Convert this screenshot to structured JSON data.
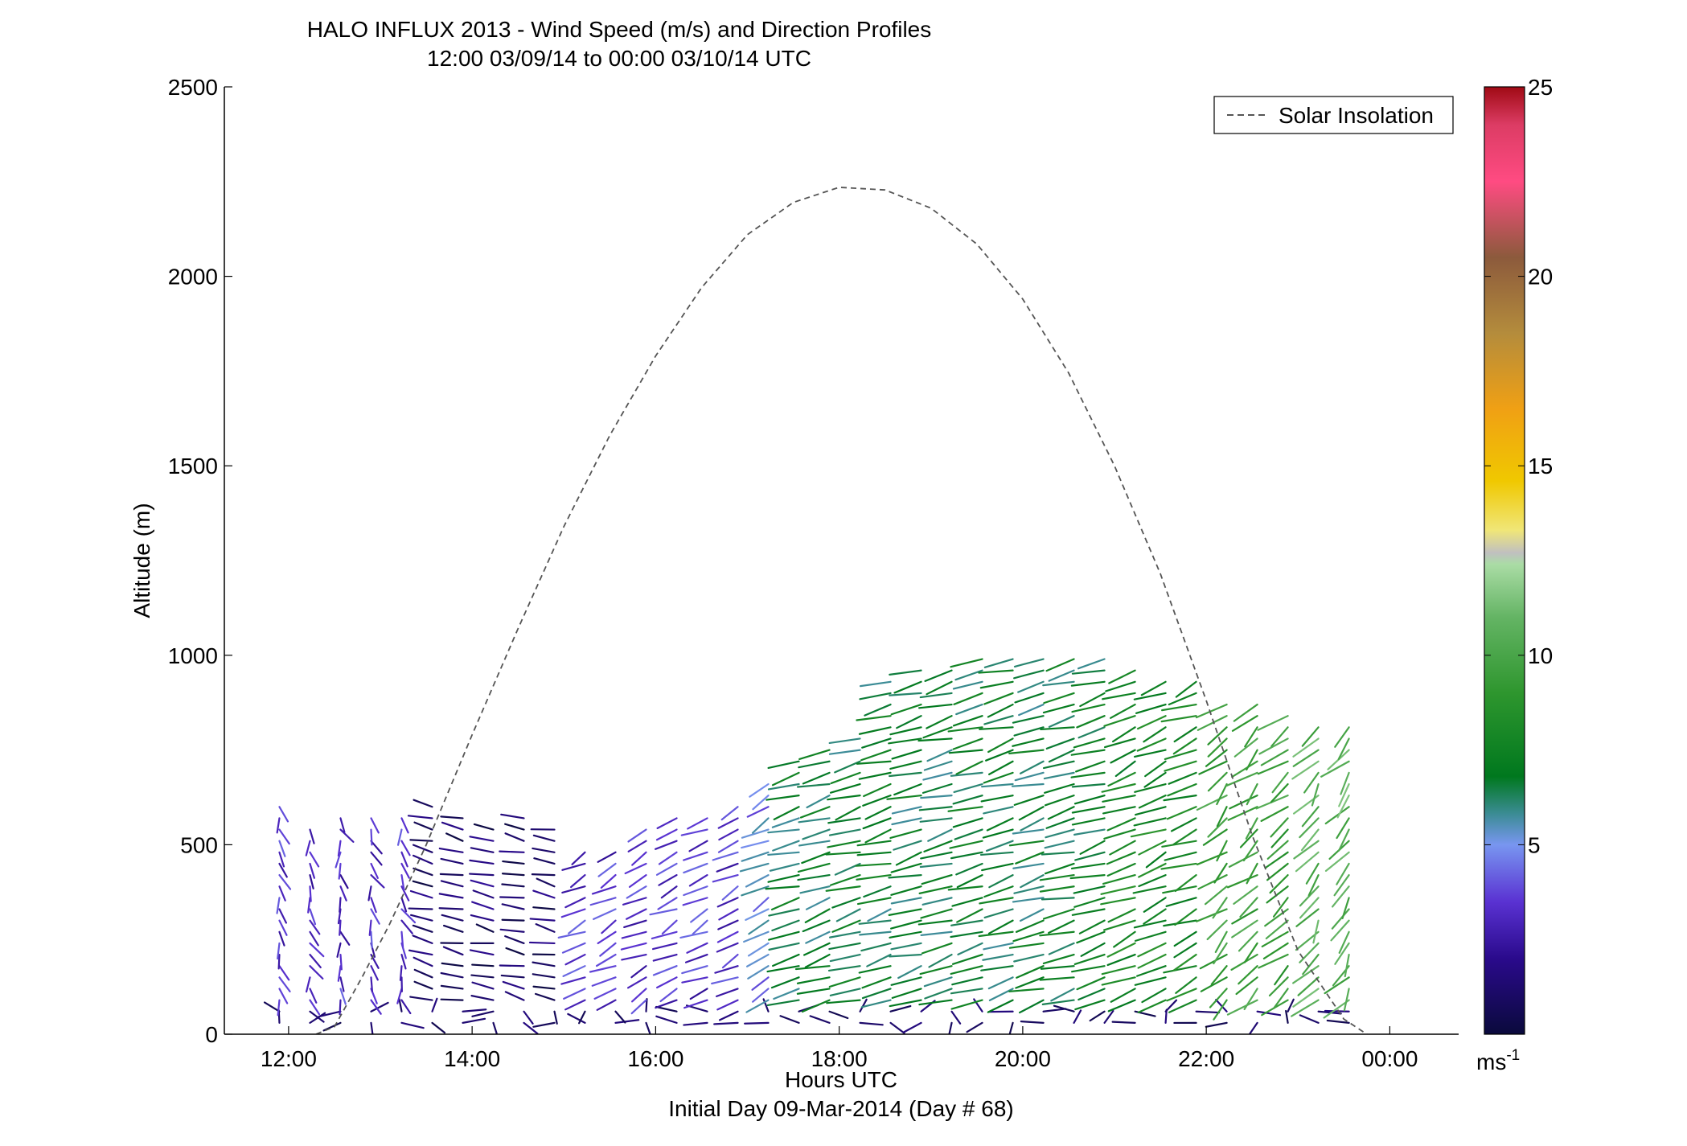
{
  "chart_data": {
    "type": "scatter",
    "title": "HALO INFLUX 2013 - Wind Speed (m/s) and Direction Profiles",
    "subtitle": "12:00 03/09/14 to 00:00 03/10/14  UTC",
    "xlabel": "Hours UTC",
    "xlabel2": "Initial Day 09-Mar-2014 (Day # 68)",
    "ylabel": "Altitude (m)",
    "xlim": [
      11.3,
      24.75
    ],
    "ylim": [
      0,
      2500
    ],
    "x_ticks": [
      12,
      14,
      16,
      18,
      20,
      22,
      24
    ],
    "x_tick_labels": [
      "12:00",
      "14:00",
      "16:00",
      "18:00",
      "20:00",
      "22:00",
      "00:00"
    ],
    "y_ticks": [
      0,
      500,
      1000,
      1500,
      2000,
      2500
    ],
    "y_tick_labels": [
      "0",
      "500",
      "1000",
      "1500",
      "2000",
      "2500"
    ],
    "grid": false,
    "legend": {
      "placement": "top-right",
      "entries": [
        {
          "label": "Solar Insolation",
          "style": "dashed",
          "color": "#555555"
        }
      ]
    },
    "colorbar": {
      "range": [
        0,
        25
      ],
      "ticks": [
        5,
        10,
        15,
        20,
        25
      ],
      "tick_labels": [
        "5",
        "10",
        "15",
        "20",
        "25"
      ],
      "unit_label": "ms",
      "unit_exponent": "-1",
      "colors": [
        "#0a0a3c",
        "#2a0a8c",
        "#5a32d2",
        "#7896f0",
        "#3c8c96",
        "#00781e",
        "#2e962e",
        "#64b464",
        "#aadca5",
        "#c0c0c0",
        "#f0e678",
        "#f0c800",
        "#f0a014",
        "#b48c3c",
        "#8c5a3c",
        "#ff4b82",
        "#dc3c64",
        "#a00a14"
      ],
      "color_stops": [
        0,
        2,
        3.5,
        5,
        5.8,
        6.8,
        9,
        11,
        12.4,
        12.7,
        13.3,
        14.6,
        16.5,
        18.5,
        20.5,
        22.5,
        24,
        25
      ]
    },
    "solar_insolation": {
      "x": [
        12.3,
        12.5,
        12.8,
        13.1,
        13.5,
        14,
        14.5,
        15,
        15.5,
        16,
        16.5,
        17,
        17.5,
        18,
        18.5,
        19,
        19.5,
        20,
        20.5,
        21,
        21.5,
        22,
        22.5,
        23,
        23.5,
        23.75
      ],
      "y": [
        0,
        20,
        150,
        290,
        500,
        790,
        1070,
        1340,
        1580,
        1790,
        1970,
        2110,
        2195,
        2235,
        2228,
        2180,
        2085,
        1940,
        1745,
        1500,
        1215,
        880,
        525,
        220,
        40,
        0
      ]
    },
    "wind_profiles": {
      "x_start": 11.9,
      "x_step": 0.333,
      "top_altitudes": [
        600,
        560,
        570,
        570,
        580,
        600,
        580,
        560,
        570,
        560,
        500,
        490,
        560,
        590,
        580,
        620,
        680,
        740,
        770,
        800,
        950,
        960,
        960,
        1000,
        1000,
        990,
        990,
        990,
        960,
        950,
        940,
        880,
        870,
        860,
        830,
        810
      ],
      "speed_regimes": [
        {
          "until_x": 13.4,
          "speed": 3.2,
          "direction_deg": 170
        },
        {
          "until_x": 15.2,
          "speed": 1.2,
          "direction_deg": 290
        },
        {
          "until_x": 16.9,
          "speed": 3.3,
          "direction_deg": 230
        },
        {
          "until_x": 17.5,
          "speed": 4.8,
          "direction_deg": 230
        },
        {
          "until_x": 21.0,
          "speed": 6.8,
          "direction_deg": 245
        },
        {
          "until_x": 22.0,
          "speed": 7.8,
          "direction_deg": 235
        },
        {
          "until_x": 23.0,
          "speed": 9.5,
          "direction_deg": 215
        },
        {
          "until_x": 24.1,
          "speed": 10.5,
          "direction_deg": 205
        }
      ]
    }
  }
}
